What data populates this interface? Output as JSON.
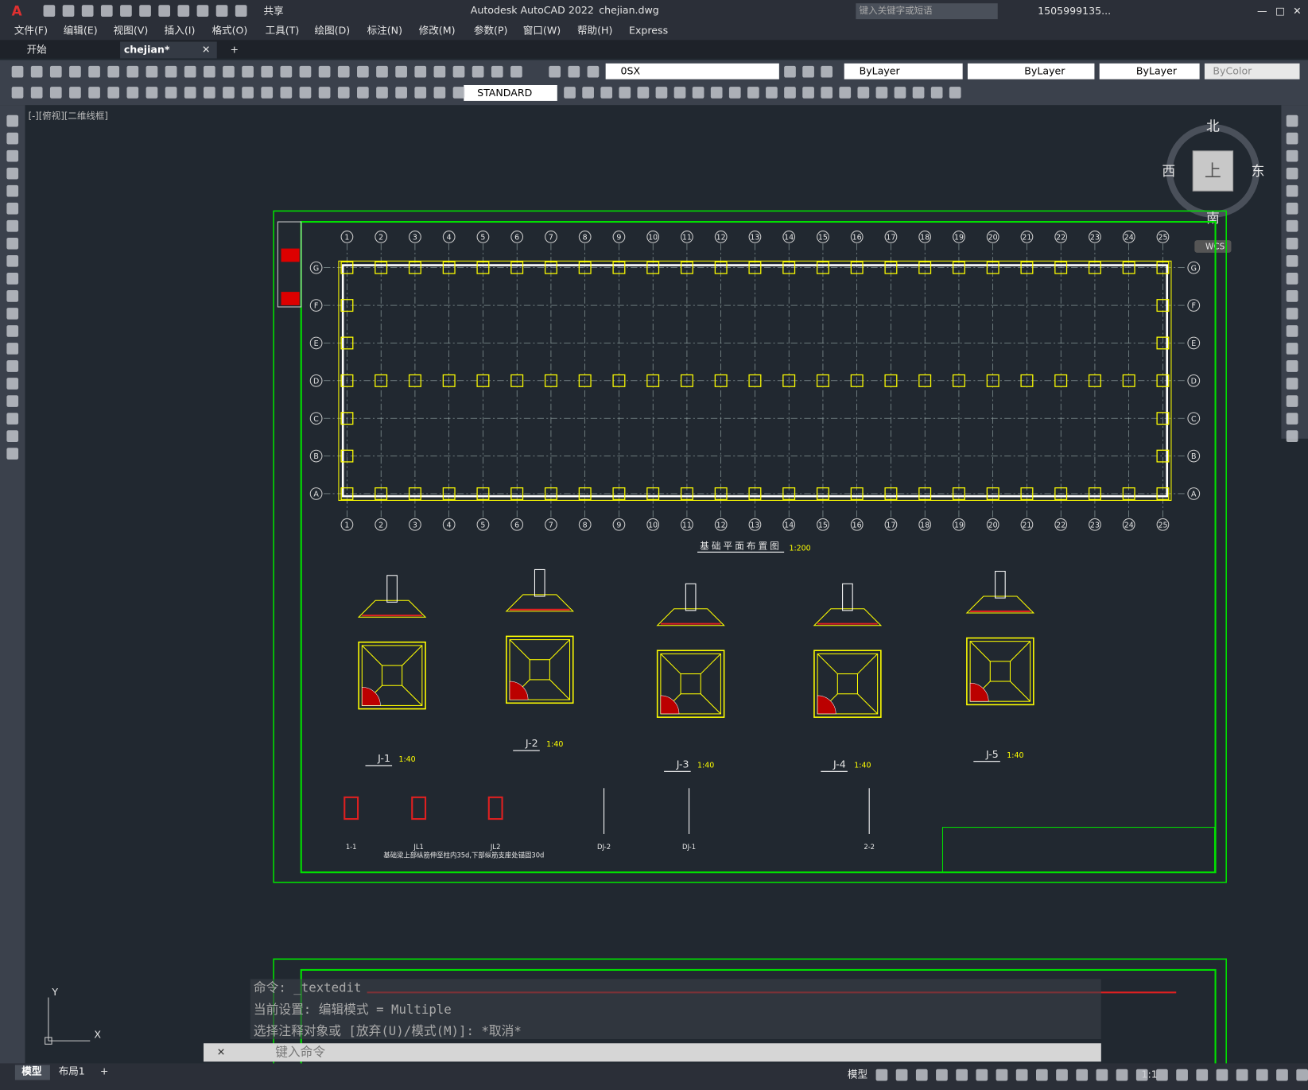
{
  "title_bar": {
    "app": "Autodesk AutoCAD 2022",
    "file": "chejian.dwg",
    "share": "共享",
    "search": "键入关键字或短语",
    "user": "1505999135..."
  },
  "menu": [
    "文件(F)",
    "编辑(E)",
    "视图(V)",
    "插入(I)",
    "格式(O)",
    "工具(T)",
    "绘图(D)",
    "标注(N)",
    "修改(M)",
    "参数(P)",
    "窗口(W)",
    "帮助(H)",
    "Express"
  ],
  "tabs": [
    "开始",
    "chejian*"
  ],
  "toolbar": {
    "layer": "0SX",
    "text_style": "STANDARD",
    "color": "ByLayer",
    "linetype": "ByLayer",
    "lineweight": "ByLayer",
    "plot_style": "ByColor"
  },
  "viewport_label": "[-][俯视][二维线框]",
  "viewcube": {
    "north": "北",
    "south": "南",
    "east": "东",
    "west": "西",
    "top": "上",
    "wcs": "WCS"
  },
  "drawing": {
    "grid_columns": [
      "1",
      "2",
      "3",
      "4",
      "5",
      "6",
      "7",
      "8",
      "9",
      "10",
      "11",
      "12",
      "13",
      "14",
      "15",
      "16",
      "17",
      "18",
      "19",
      "20",
      "21",
      "22",
      "23",
      "24",
      "25"
    ],
    "grid_rows": [
      "G",
      "F",
      "E",
      "D",
      "C",
      "B",
      "A"
    ],
    "plan_title": "基础平面布置图",
    "plan_scale": "1:200",
    "footings": [
      {
        "label": "J-1",
        "scale": "1:40"
      },
      {
        "label": "J-2",
        "scale": "1:40"
      },
      {
        "label": "J-3",
        "scale": "1:40"
      },
      {
        "label": "J-4",
        "scale": "1:40"
      },
      {
        "label": "J-5",
        "scale": "1:40"
      }
    ],
    "details": [
      "1-1",
      "JL1",
      "JL2",
      "DJ-2",
      "DJ-1",
      "2-2"
    ],
    "note": "基础梁上部纵筋伸至柱内35d,下部纵筋支座处锚固30d"
  },
  "command": {
    "history": [
      "命令: _textedit",
      "当前设置: 编辑模式 = Multiple",
      "选择注释对象或 [放弃(U)/模式(M)]: *取消*"
    ],
    "prompt": "键入命令"
  },
  "layout_tabs": [
    "模型",
    "布局1"
  ],
  "status": {
    "space": "模型",
    "scale": "1:1"
  },
  "ucs": {
    "x": "X",
    "y": "Y"
  }
}
